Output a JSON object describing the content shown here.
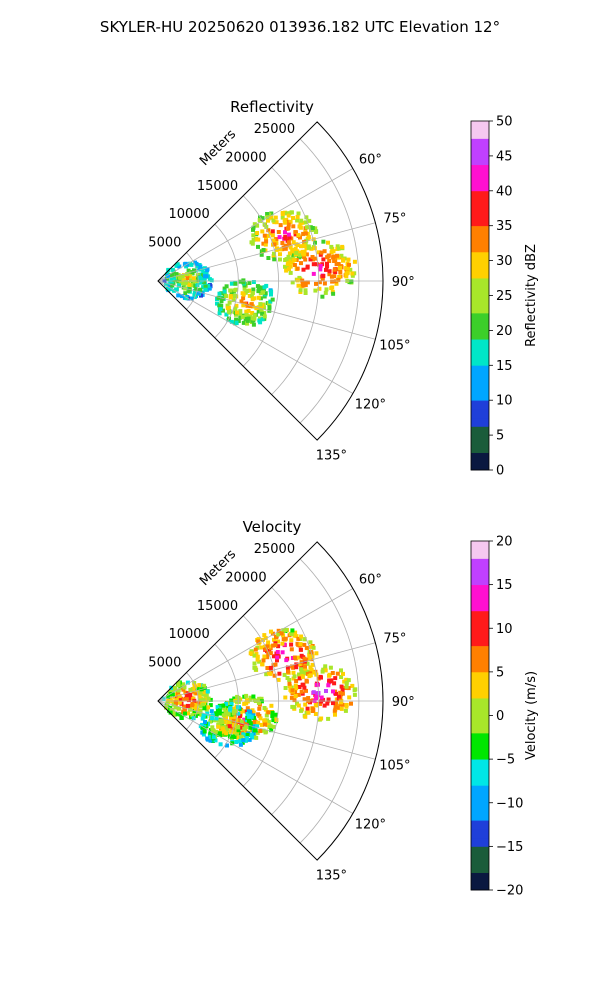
{
  "figure": {
    "suptitle": "SKYLER-HU  20250620  013936.182 UTC Elevation 12°"
  },
  "chart_data": [
    {
      "type": "heatmap",
      "subtype": "polar-sector",
      "title": "Reflectivity",
      "radial_label": "Meters",
      "radial_ticks": [
        "5000",
        "10000",
        "15000",
        "20000",
        "25000"
      ],
      "radial_values": [
        5000,
        10000,
        15000,
        20000,
        25000
      ],
      "rlim": [
        0,
        28000
      ],
      "angle_ticks": [
        "60°",
        "75°",
        "90°",
        "105°",
        "120°",
        "135°"
      ],
      "angle_values": [
        60,
        75,
        90,
        105,
        120,
        135
      ],
      "theta_range_deg": [
        45,
        135
      ],
      "grid": true,
      "colorbar": {
        "label": "Reflectivity dBZ",
        "range": [
          0,
          50
        ],
        "ticks": [
          "0",
          "5",
          "10",
          "15",
          "20",
          "25",
          "30",
          "35",
          "40",
          "45",
          "50"
        ],
        "colors": [
          "#0a1840",
          "#1a5c3a",
          "#1f3fd9",
          "#00a6ff",
          "#00e6c8",
          "#3ccf2a",
          "#a8e62a",
          "#ffd000",
          "#ff8000",
          "#ff1a1a",
          "#ff10d0",
          "#c040ff",
          "#f5c8f0"
        ]
      },
      "echoes": [
        {
          "theta_deg": 69,
          "range_m": 16500,
          "mean_value": 40
        },
        {
          "theta_deg": 84,
          "range_m": 3500,
          "mean_value": 30
        },
        {
          "theta_deg": 85,
          "range_m": 20000,
          "mean_value": 42
        },
        {
          "theta_deg": 103,
          "range_m": 11000,
          "mean_value": 35
        }
      ]
    },
    {
      "type": "heatmap",
      "subtype": "polar-sector",
      "title": "Velocity",
      "radial_label": "Meters",
      "radial_ticks": [
        "5000",
        "10000",
        "15000",
        "20000",
        "25000"
      ],
      "radial_values": [
        5000,
        10000,
        15000,
        20000,
        25000
      ],
      "rlim": [
        0,
        28000
      ],
      "angle_ticks": [
        "60°",
        "75°",
        "90°",
        "105°",
        "120°",
        "135°"
      ],
      "angle_values": [
        60,
        75,
        90,
        105,
        120,
        135
      ],
      "theta_range_deg": [
        45,
        135
      ],
      "grid": true,
      "colorbar": {
        "label": "Velocity (m/s)",
        "range": [
          -20,
          20
        ],
        "ticks": [
          "−20",
          "−15",
          "−10",
          "−5",
          "0",
          "5",
          "10",
          "15",
          "20"
        ],
        "colors": [
          "#0a1840",
          "#1a5c3a",
          "#1f3fd9",
          "#00a6ff",
          "#00e6e6",
          "#00e600",
          "#a8e62a",
          "#ffd000",
          "#ff8000",
          "#ff1a1a",
          "#ff10d0",
          "#c040ff",
          "#f5c8f0"
        ]
      },
      "echoes": [
        {
          "theta_deg": 69,
          "range_m": 16500,
          "mean_value": 15
        },
        {
          "theta_deg": 84,
          "range_m": 3500,
          "mean_value": 11
        },
        {
          "theta_deg": 86,
          "range_m": 20000,
          "mean_value": 15
        },
        {
          "theta_deg": 100,
          "range_m": 11000,
          "mean_value": 12
        },
        {
          "theta_deg": 108,
          "range_m": 9000,
          "mean_value": 6
        }
      ]
    }
  ]
}
